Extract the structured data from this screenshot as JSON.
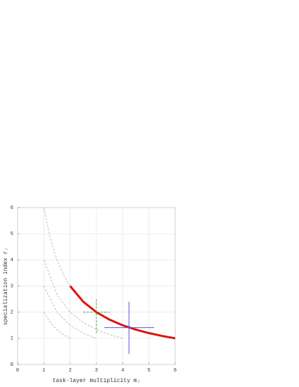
{
  "chart_data": {
    "type": "line",
    "xlabel": "task-layer multiplicity mⱼ",
    "ylabel": "specialization index rⱼ",
    "xlim": [
      0,
      6
    ],
    "ylim": [
      0,
      6
    ],
    "xticks": [
      0,
      1,
      2,
      3,
      4,
      5,
      6
    ],
    "yticks": [
      0,
      1,
      2,
      3,
      4,
      5,
      6
    ],
    "grid": true,
    "series": [
      {
        "color": "#b8b8b8",
        "style": "dashed",
        "x": [
          1,
          1.25,
          1.5,
          1.75,
          2
        ],
        "values": [
          2,
          1.6,
          1.333,
          1.143,
          1
        ]
      },
      {
        "color": "#b8b8b8",
        "style": "dashed",
        "x": [
          1,
          1.5,
          2,
          2.5,
          3
        ],
        "values": [
          3,
          2,
          1.5,
          1.2,
          1
        ]
      },
      {
        "color": "#b8b8b8",
        "style": "dashed",
        "x": [
          1,
          1.5,
          2,
          2.5,
          3,
          3.5,
          4
        ],
        "values": [
          4,
          2.667,
          2,
          1.6,
          1.333,
          1.143,
          1
        ]
      },
      {
        "color": "#b8b8b8",
        "style": "dashed",
        "x": [
          1,
          1.25,
          1.5,
          1.75,
          2
        ],
        "values": [
          6,
          4.8,
          4,
          3.429,
          3
        ]
      },
      {
        "color": "#e01010",
        "style": "solid",
        "x": [
          2,
          2.5,
          3,
          3.5,
          4,
          4.5,
          5,
          5.5,
          6
        ],
        "values": [
          3,
          2.4,
          2,
          1.714,
          1.5,
          1.333,
          1.2,
          1.091,
          1
        ]
      }
    ],
    "crosses": [
      {
        "color": "#3a9a3a",
        "style": "dashed",
        "x": 3,
        "y": 2,
        "x_range": [
          2.5,
          3.5
        ],
        "y_range": [
          1.2,
          2.5
        ]
      },
      {
        "color": "#5555dd",
        "style": "solid",
        "x": 4.24,
        "y": 1.41,
        "x_range": [
          3.3,
          5.2
        ],
        "y_range": [
          0.4,
          2.4
        ]
      }
    ]
  }
}
